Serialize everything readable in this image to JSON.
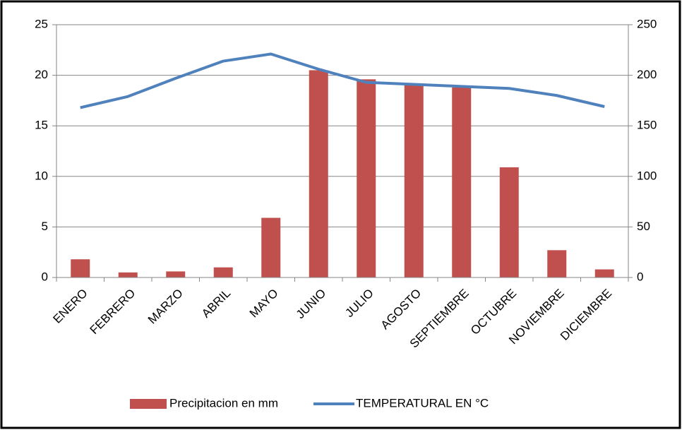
{
  "chart_data": {
    "type": "bar_line",
    "categories": [
      "ENERO",
      "FEBRERO",
      "MARZO",
      "ABRIL",
      "MAYO",
      "JUNIO",
      "JULIO",
      "AGOSTO",
      "SEPTIEMBRE",
      "OCTUBRE",
      "NOVIEMBRE",
      "DICIEMBRE"
    ],
    "series": [
      {
        "name": "Precipitacion en mm",
        "type": "bar",
        "axis": "y2",
        "color": "#c0504d",
        "values": [
          18,
          5,
          6,
          10,
          59,
          205,
          196,
          192,
          188,
          109,
          27,
          8
        ]
      },
      {
        "name": "TEMPERATURAL EN °C",
        "type": "line",
        "axis": "y",
        "color": "#4f81bd",
        "values": [
          16.8,
          17.9,
          19.7,
          21.4,
          22.1,
          20.6,
          19.3,
          19.1,
          18.9,
          18.7,
          18.0,
          16.9
        ]
      }
    ],
    "ylim": [
      0,
      25
    ],
    "yticks": [
      0,
      5,
      10,
      15,
      20,
      25
    ],
    "y2lim": [
      0,
      250
    ],
    "y2ticks": [
      0,
      50,
      100,
      150,
      200,
      250
    ],
    "grid": true,
    "legend": "bottom"
  }
}
